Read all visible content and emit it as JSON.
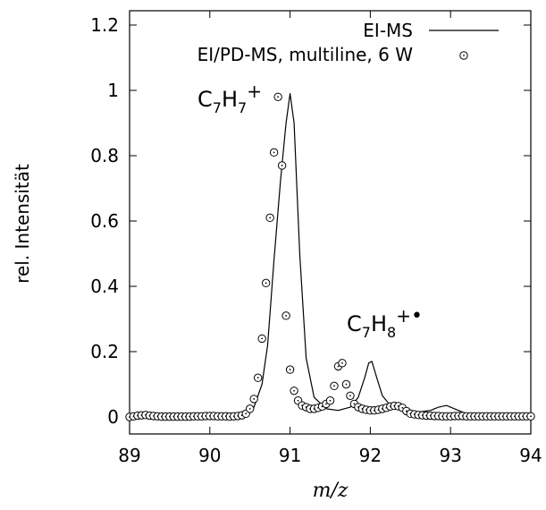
{
  "chart_data": {
    "type": "line",
    "xlabel": "m/z",
    "ylabel": "rel. Intensität",
    "xlim": [
      89,
      94
    ],
    "ylim": [
      -0.05,
      1.25
    ],
    "xticks": [
      "89",
      "90",
      "91",
      "92",
      "93",
      "94"
    ],
    "yticks": [
      "0",
      "0.2",
      "0.4",
      "0.6",
      "0.8",
      "1",
      "1.2"
    ],
    "legend_position": "top-right",
    "series": [
      {
        "name": "EI-MS",
        "style": "line",
        "color": "#000000",
        "x": [
          89.0,
          89.5,
          90.0,
          90.3,
          90.45,
          90.55,
          90.65,
          90.72,
          90.8,
          90.88,
          90.95,
          91.0,
          91.05,
          91.12,
          91.2,
          91.3,
          91.45,
          91.6,
          91.75,
          91.85,
          91.93,
          91.98,
          92.02,
          92.08,
          92.15,
          92.25,
          92.4,
          92.6,
          92.75,
          92.85,
          92.95,
          93.05,
          93.2,
          93.5,
          94.0
        ],
        "y": [
          0.0,
          0.0,
          0.0,
          0.0,
          0.01,
          0.03,
          0.1,
          0.22,
          0.48,
          0.72,
          0.9,
          0.99,
          0.9,
          0.5,
          0.18,
          0.06,
          0.025,
          0.02,
          0.03,
          0.06,
          0.12,
          0.165,
          0.17,
          0.12,
          0.065,
          0.035,
          0.02,
          0.015,
          0.02,
          0.03,
          0.035,
          0.025,
          0.01,
          0.005,
          0.0
        ]
      },
      {
        "name": "EI/PD-MS, multiline, 6 W",
        "style": "open-circles",
        "color": "#000000",
        "x": [
          89.0,
          89.05,
          89.1,
          89.15,
          89.2,
          89.25,
          89.3,
          89.35,
          89.4,
          89.45,
          89.5,
          89.55,
          89.6,
          89.65,
          89.7,
          89.75,
          89.8,
          89.85,
          89.9,
          89.95,
          90.0,
          90.05,
          90.1,
          90.15,
          90.2,
          90.25,
          90.3,
          90.35,
          90.4,
          90.45,
          90.5,
          90.55,
          90.6,
          90.65,
          90.7,
          90.75,
          90.8,
          90.85,
          90.9,
          90.95,
          91.0,
          91.05,
          91.1,
          91.15,
          91.2,
          91.25,
          91.3,
          91.35,
          91.4,
          91.45,
          91.5,
          91.55,
          91.6,
          91.65,
          91.7,
          91.75,
          91.8,
          91.85,
          91.9,
          91.95,
          92.0,
          92.05,
          92.1,
          92.15,
          92.2,
          92.25,
          92.3,
          92.35,
          92.4,
          92.45,
          92.5,
          92.55,
          92.6,
          92.65,
          92.7,
          92.75,
          92.8,
          92.85,
          92.9,
          92.95,
          93.0,
          93.05,
          93.1,
          93.15,
          93.2,
          93.25,
          93.3,
          93.35,
          93.4,
          93.45,
          93.5,
          93.55,
          93.6,
          93.65,
          93.7,
          93.75,
          93.8,
          93.85,
          93.9,
          93.95,
          94.0
        ],
        "y": [
          0.0,
          0.002,
          0.004,
          0.005,
          0.006,
          0.004,
          0.003,
          0.002,
          0.001,
          0.001,
          0.001,
          0.001,
          0.001,
          0.001,
          0.001,
          0.001,
          0.002,
          0.002,
          0.002,
          0.003,
          0.003,
          0.003,
          0.002,
          0.002,
          0.002,
          0.001,
          0.002,
          0.003,
          0.005,
          0.01,
          0.025,
          0.055,
          0.12,
          0.24,
          0.41,
          0.61,
          0.81,
          0.98,
          0.77,
          0.31,
          0.145,
          0.08,
          0.05,
          0.035,
          0.03,
          0.025,
          0.025,
          0.028,
          0.032,
          0.04,
          0.05,
          0.095,
          0.155,
          0.165,
          0.1,
          0.065,
          0.04,
          0.03,
          0.025,
          0.022,
          0.02,
          0.02,
          0.022,
          0.025,
          0.028,
          0.032,
          0.034,
          0.033,
          0.028,
          0.018,
          0.01,
          0.008,
          0.006,
          0.005,
          0.004,
          0.004,
          0.003,
          0.003,
          0.002,
          0.002,
          0.002,
          0.003,
          0.003,
          0.003,
          0.002,
          0.002,
          0.002,
          0.002,
          0.002,
          0.002,
          0.002,
          0.002,
          0.002,
          0.002,
          0.002,
          0.002,
          0.002,
          0.002,
          0.002,
          0.002,
          0.002
        ]
      }
    ],
    "annotations": [
      {
        "text": "C7H7+",
        "base": "C",
        "sub1": "7",
        "mid": "H",
        "sub2": "7",
        "sup": "+",
        "x": 91.0,
        "y": 0.98
      },
      {
        "text": "C7H8+•",
        "base": "C",
        "sub1": "7",
        "mid": "H",
        "sub2": "8",
        "sup": "+",
        "radical": "•",
        "x": 92.05,
        "y": 0.17
      }
    ]
  }
}
